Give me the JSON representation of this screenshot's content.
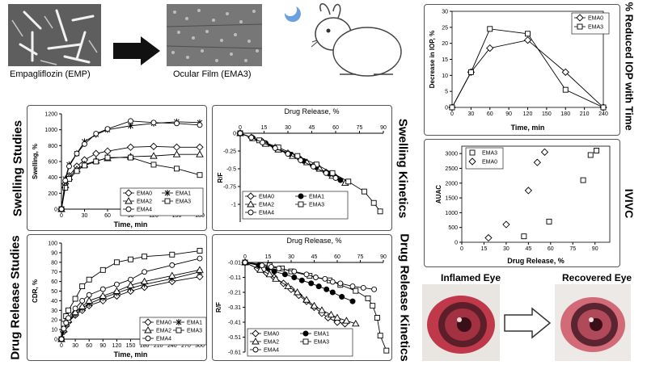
{
  "top": {
    "emp_caption": "Empagliflozin (EMP)",
    "film_caption": "Ocular Film (EMA3)"
  },
  "side_titles": {
    "swelling_studies": "Swelling Studies",
    "drug_release_studies": "Drug Release Studies",
    "swelling_kinetics": "Swelling Kinetics",
    "drug_release_kinetics": "Drug Release Kinetics",
    "reduced_iop": "% Reduced IOP with Time",
    "ivivc": "IVIVC"
  },
  "eyes": {
    "inflamed": "Inflamed Eye",
    "recovered": "Recovered Eye"
  },
  "colors": {
    "panel_border": "#555555",
    "eye_red": "#c0394b",
    "sem_gray": "#6f6f6f"
  },
  "chart_data": [
    {
      "id": "swelling",
      "type": "line",
      "title": "",
      "xlabel": "Time, min",
      "ylabel": "Swelling, %",
      "xlim": [
        0,
        180
      ],
      "ylim": [
        0,
        1200
      ],
      "xticks": [
        0,
        30,
        60,
        90,
        120,
        150,
        180
      ],
      "yticks": [
        0,
        200,
        400,
        600,
        800,
        1000,
        1200
      ],
      "x": [
        0,
        5,
        10,
        20,
        30,
        45,
        60,
        90,
        120,
        150,
        180
      ],
      "legend": [
        "EMA0",
        "EMA1",
        "EMA2",
        "EMA3",
        "EMA4"
      ],
      "series": [
        {
          "name": "EMA0",
          "marker": "diamond",
          "values": [
            0,
            320,
            420,
            540,
            620,
            700,
            730,
            780,
            790,
            780,
            780
          ]
        },
        {
          "name": "EMA1",
          "marker": "star",
          "values": [
            0,
            380,
            560,
            700,
            850,
            940,
            1000,
            1050,
            1080,
            1100,
            1090
          ]
        },
        {
          "name": "EMA2",
          "marker": "triangle",
          "values": [
            0,
            300,
            400,
            500,
            560,
            610,
            640,
            660,
            670,
            690,
            690
          ]
        },
        {
          "name": "EMA3",
          "marker": "square",
          "values": [
            0,
            270,
            380,
            480,
            550,
            600,
            650,
            650,
            560,
            510,
            430
          ]
        },
        {
          "name": "EMA4",
          "marker": "circle",
          "values": [
            0,
            360,
            540,
            700,
            820,
            950,
            1010,
            1110,
            1090,
            1080,
            1060
          ]
        }
      ]
    },
    {
      "id": "swelling_kinetics",
      "type": "line",
      "title": "Drug Release, %",
      "xlabel": "",
      "ylabel": "R/F",
      "xlim": [
        0,
        90
      ],
      "ylim": [
        -1.25,
        0
      ],
      "xticks": [
        0,
        15,
        30,
        45,
        60,
        75,
        90
      ],
      "yticks": [
        0,
        -0.25,
        -0.5,
        -0.75,
        -1
      ],
      "legend": [
        "EMA0",
        "EMA1",
        "EMA2",
        "EMA3",
        "EMA4"
      ],
      "series": [
        {
          "name": "EMA0",
          "marker": "diamond",
          "x": [
            0,
            7,
            14,
            22,
            30,
            38,
            46,
            54,
            60
          ],
          "values": [
            0,
            -0.06,
            -0.12,
            -0.2,
            -0.28,
            -0.37,
            -0.46,
            -0.55,
            -0.62
          ]
        },
        {
          "name": "EMA1",
          "marker": "filled-circle",
          "x": [
            0,
            8,
            16,
            24,
            32,
            40,
            48,
            56,
            63
          ],
          "values": [
            0,
            -0.07,
            -0.14,
            -0.22,
            -0.3,
            -0.39,
            -0.48,
            -0.57,
            -0.66
          ]
        },
        {
          "name": "EMA2",
          "marker": "triangle",
          "x": [
            0,
            8,
            16,
            24,
            33,
            42,
            50,
            58,
            66
          ],
          "values": [
            0,
            -0.07,
            -0.15,
            -0.23,
            -0.32,
            -0.41,
            -0.5,
            -0.6,
            -0.7
          ]
        },
        {
          "name": "EMA3",
          "marker": "square",
          "x": [
            0,
            12,
            24,
            36,
            48,
            58,
            68,
            78,
            84,
            88
          ],
          "values": [
            0,
            -0.1,
            -0.2,
            -0.32,
            -0.44,
            -0.56,
            -0.68,
            -0.82,
            -0.98,
            -1.1
          ]
        },
        {
          "name": "EMA4",
          "marker": "circle",
          "x": [
            0,
            7,
            14,
            22,
            30,
            38,
            46,
            54,
            60
          ],
          "values": [
            0,
            -0.06,
            -0.13,
            -0.21,
            -0.29,
            -0.38,
            -0.47,
            -0.56,
            -0.63
          ]
        }
      ]
    },
    {
      "id": "drug_release",
      "type": "line",
      "title": "",
      "xlabel": "Time, min",
      "ylabel": "CDR, %",
      "xlim": [
        0,
        300
      ],
      "ylim": [
        0,
        100
      ],
      "xticks": [
        0,
        30,
        60,
        90,
        120,
        150,
        180,
        210,
        240,
        270,
        300
      ],
      "yticks": [
        0,
        10,
        20,
        30,
        40,
        50,
        60,
        70,
        80,
        90,
        100
      ],
      "x": [
        0,
        5,
        10,
        15,
        30,
        45,
        60,
        90,
        120,
        150,
        180,
        240,
        300
      ],
      "legend": [
        "EMA0",
        "EMA1",
        "EMA2",
        "EMA3",
        "EMA4"
      ],
      "series": [
        {
          "name": "EMA0",
          "marker": "diamond",
          "values": [
            0,
            8,
            14,
            18,
            25,
            30,
            35,
            40,
            45,
            50,
            54,
            60,
            65
          ]
        },
        {
          "name": "EMA1",
          "marker": "star",
          "values": [
            0,
            9,
            15,
            19,
            26,
            32,
            37,
            43,
            48,
            53,
            57,
            63,
            70
          ]
        },
        {
          "name": "EMA2",
          "marker": "triangle",
          "values": [
            0,
            10,
            16,
            20,
            28,
            34,
            40,
            45,
            50,
            56,
            60,
            66,
            72
          ]
        },
        {
          "name": "EMA3",
          "marker": "square",
          "values": [
            0,
            16,
            24,
            30,
            42,
            55,
            62,
            72,
            80,
            83,
            86,
            88,
            92
          ]
        },
        {
          "name": "EMA4",
          "marker": "circle",
          "values": [
            0,
            11,
            17,
            22,
            32,
            40,
            46,
            52,
            57,
            62,
            70,
            77,
            84
          ]
        }
      ]
    },
    {
      "id": "drug_release_kinetics",
      "type": "line",
      "title": "Drug Release, %",
      "xlabel": "",
      "ylabel": "R/F",
      "xlim": [
        0,
        90
      ],
      "ylim": [
        -0.61,
        -0.01
      ],
      "xticks": [
        0,
        15,
        30,
        45,
        60,
        75,
        90
      ],
      "yticks": [
        -0.01,
        -0.11,
        -0.21,
        -0.31,
        -0.41,
        -0.51,
        -0.61
      ],
      "legend": [
        "EMA0",
        "EMA1",
        "EMA2",
        "EMA3",
        "EMA4"
      ],
      "series": [
        {
          "name": "EMA0",
          "marker": "diamond",
          "x": [
            0,
            8,
            14,
            19,
            25,
            30,
            35,
            40,
            45,
            50,
            54,
            60,
            65
          ],
          "values": [
            -0.01,
            -0.05,
            -0.08,
            -0.11,
            -0.15,
            -0.19,
            -0.23,
            -0.27,
            -0.31,
            -0.35,
            -0.38,
            -0.41,
            -0.42
          ]
        },
        {
          "name": "EMA1",
          "marker": "filled-circle",
          "x": [
            0,
            9,
            15,
            19,
            26,
            32,
            37,
            43,
            48,
            53,
            57,
            63,
            70
          ],
          "values": [
            -0.01,
            -0.03,
            -0.05,
            -0.07,
            -0.09,
            -0.11,
            -0.13,
            -0.15,
            -0.17,
            -0.19,
            -0.21,
            -0.24,
            -0.27
          ]
        },
        {
          "name": "EMA2",
          "marker": "triangle",
          "x": [
            0,
            10,
            16,
            20,
            28,
            34,
            40,
            45,
            50,
            56,
            60,
            66,
            72
          ],
          "values": [
            -0.01,
            -0.06,
            -0.09,
            -0.12,
            -0.17,
            -0.21,
            -0.26,
            -0.3,
            -0.33,
            -0.36,
            -0.38,
            -0.4,
            -0.42
          ]
        },
        {
          "name": "EMA3",
          "marker": "square",
          "x": [
            0,
            16,
            24,
            30,
            42,
            55,
            62,
            72,
            80,
            83,
            86,
            88,
            92
          ],
          "values": [
            -0.01,
            -0.03,
            -0.05,
            -0.07,
            -0.1,
            -0.13,
            -0.16,
            -0.2,
            -0.25,
            -0.3,
            -0.38,
            -0.5,
            -0.6
          ]
        },
        {
          "name": "EMA4",
          "marker": "circle",
          "x": [
            0,
            11,
            17,
            22,
            32,
            40,
            46,
            52,
            57,
            62,
            70,
            77,
            84
          ],
          "values": [
            -0.01,
            -0.03,
            -0.04,
            -0.05,
            -0.07,
            -0.09,
            -0.11,
            -0.12,
            -0.14,
            -0.15,
            -0.17,
            -0.18,
            -0.19
          ]
        }
      ]
    },
    {
      "id": "iop",
      "type": "line",
      "title": "",
      "xlabel": "Time, min",
      "ylabel": "Decrease in IOP, %",
      "xlim": [
        0,
        240
      ],
      "ylim": [
        0,
        30
      ],
      "xticks": [
        0,
        30,
        60,
        90,
        120,
        150,
        180,
        210,
        240
      ],
      "yticks": [
        0,
        5,
        10,
        15,
        20,
        25,
        30
      ],
      "x": [
        0,
        30,
        60,
        120,
        180,
        240
      ],
      "legend": [
        "EMA0",
        "EMA3"
      ],
      "series": [
        {
          "name": "EMA0",
          "marker": "diamond",
          "values": [
            0,
            11,
            18.5,
            21,
            11,
            0
          ]
        },
        {
          "name": "EMA3",
          "marker": "square",
          "values": [
            0,
            11,
            24.5,
            23,
            5.5,
            0
          ]
        }
      ]
    },
    {
      "id": "ivivc",
      "type": "scatter",
      "title": "",
      "xlabel": "Drug Release, %",
      "ylabel": "AUAC",
      "xlim": [
        0,
        100
      ],
      "ylim": [
        0,
        3250
      ],
      "xticks": [
        0,
        15,
        30,
        45,
        60,
        75,
        90
      ],
      "yticks": [
        0,
        500,
        1000,
        1500,
        2000,
        2500,
        3000
      ],
      "legend": [
        "EMA3",
        "EMA0"
      ],
      "series": [
        {
          "name": "EMA3",
          "marker": "square",
          "x": [
            42,
            59,
            82,
            87,
            91
          ],
          "values": [
            200,
            700,
            2100,
            2950,
            3100
          ]
        },
        {
          "name": "EMA0",
          "marker": "diamond",
          "x": [
            18,
            30,
            45,
            51,
            56
          ],
          "values": [
            150,
            600,
            1750,
            2700,
            3050
          ]
        }
      ]
    }
  ]
}
